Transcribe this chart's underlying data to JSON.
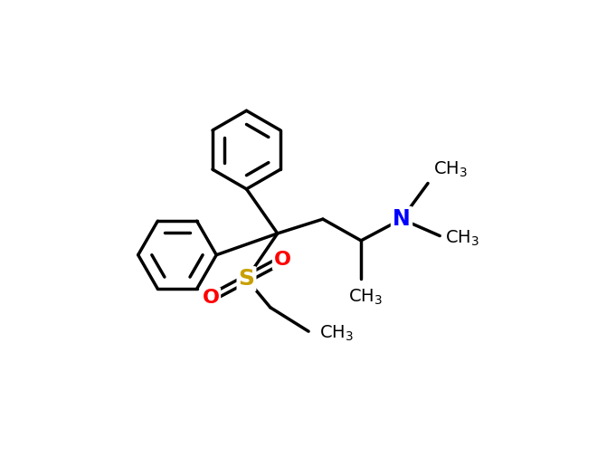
{
  "background_color": "#ffffff",
  "bond_color": "#000000",
  "sulfur_color": "#c8a000",
  "nitrogen_color": "#0000ff",
  "oxygen_color": "#ff0000",
  "line_width": 2.5,
  "font_size": 14,
  "xlim": [
    0,
    10
  ],
  "ylim": [
    0,
    7.5
  ]
}
